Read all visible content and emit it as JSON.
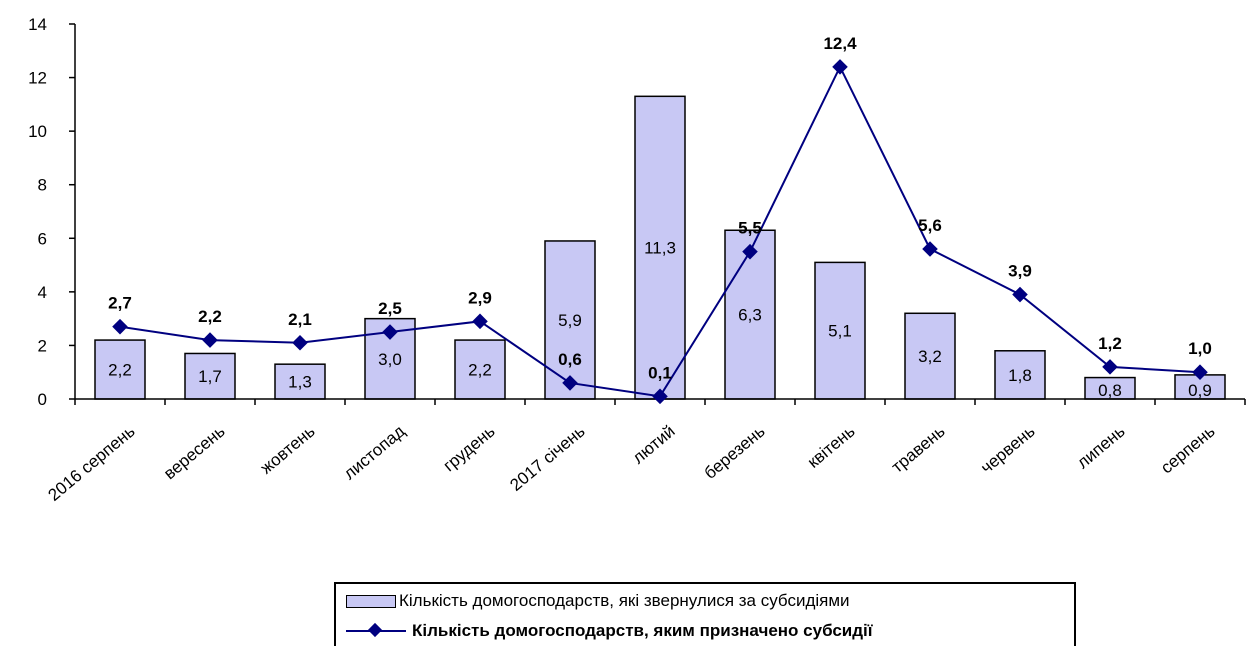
{
  "colors": {
    "bar_fill": "#c8c8f4",
    "bar_stroke": "#000000",
    "line": "#000080",
    "marker": "#000080",
    "axis": "#000000"
  },
  "chart_data": {
    "type": "bar",
    "categories": [
      "2016 серпень",
      "вересень",
      "жовтень",
      "листопад",
      "грудень",
      "2017 січень",
      "лютий",
      "березень",
      "квітень",
      "травень",
      "червень",
      "липень",
      "серпень"
    ],
    "series": [
      {
        "name": "Кількість домогосподарств, які звернулися за субсидіями",
        "type": "bar",
        "values": [
          2.2,
          1.7,
          1.3,
          3.0,
          2.2,
          5.9,
          11.3,
          6.3,
          5.1,
          3.2,
          1.8,
          0.8,
          0.9
        ],
        "labels": [
          "2,2",
          "1,7",
          "1,3",
          "3,0",
          "2,2",
          "5,9",
          "11,3",
          "6,3",
          "5,1",
          "3,2",
          "1,8",
          "0,8",
          "0,9"
        ]
      },
      {
        "name": "Кількість домогосподарств, яким призначено субсидії",
        "type": "line",
        "values": [
          2.7,
          2.2,
          2.1,
          2.5,
          2.9,
          0.6,
          0.1,
          5.5,
          12.4,
          5.6,
          3.9,
          1.2,
          1.0
        ],
        "labels": [
          "2,7",
          "2,2",
          "2,1",
          "2,5",
          "2,9",
          "0,6",
          "0,1",
          "5,5",
          "12,4",
          "5,6",
          "3,9",
          "1,2",
          "1,0"
        ]
      }
    ],
    "yticks": [
      "0",
      "2",
      "4",
      "6",
      "8",
      "10",
      "12",
      "14"
    ],
    "ylim": [
      0,
      14
    ],
    "grid": false,
    "legend_position": "bottom"
  },
  "legend": {
    "bar_label": "Кількість домогосподарств, які звернулися за субсидіями",
    "line_label": "Кількість домогосподарств, яким призначено субсидії"
  }
}
